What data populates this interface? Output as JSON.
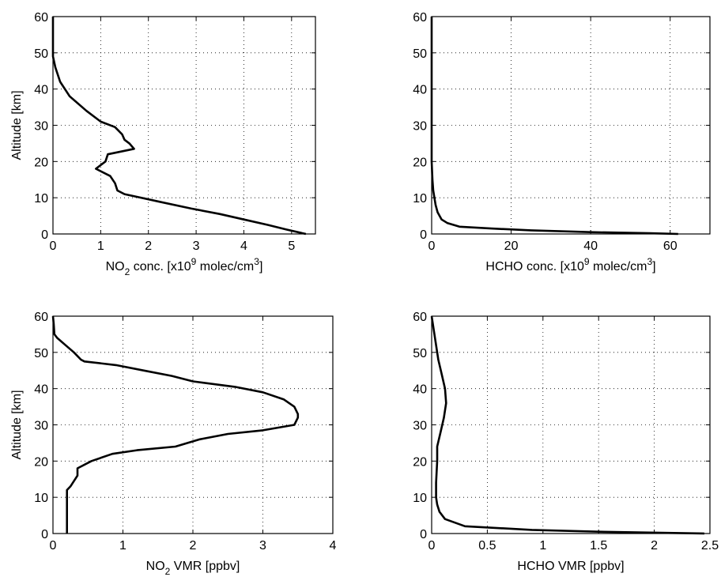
{
  "chart_data": [
    {
      "type": "line",
      "xlabel": {
        "pre": "NO",
        "sub": "2",
        "mid": " conc. [x10",
        "sup": "9",
        "post": " molec/cm",
        "sup2": "3",
        "end": "]"
      },
      "ylabel": "Altitude [km]",
      "xlim": [
        0,
        5.5
      ],
      "ylim": [
        0,
        60
      ],
      "xticks": [
        0,
        1,
        2,
        3,
        4,
        5
      ],
      "yticks": [
        0,
        10,
        20,
        30,
        40,
        50,
        60
      ],
      "grid": true,
      "series": [
        {
          "points": [
            [
              0,
              60
            ],
            [
              0,
              49
            ],
            [
              0.05,
              46
            ],
            [
              0.15,
              42
            ],
            [
              0.35,
              38
            ],
            [
              0.7,
              34
            ],
            [
              1.0,
              31
            ],
            [
              1.3,
              29.5
            ],
            [
              1.45,
              27.5
            ],
            [
              1.5,
              26
            ],
            [
              1.6,
              25
            ],
            [
              1.7,
              23.5
            ],
            [
              1.15,
              22
            ],
            [
              1.1,
              20
            ],
            [
              0.9,
              18
            ],
            [
              1.2,
              16
            ],
            [
              1.3,
              14
            ],
            [
              1.35,
              12
            ],
            [
              1.5,
              11
            ],
            [
              2.2,
              9
            ],
            [
              2.9,
              7
            ],
            [
              3.5,
              5.5
            ],
            [
              4.0,
              4
            ],
            [
              4.5,
              2.5
            ],
            [
              4.9,
              1.2
            ],
            [
              5.3,
              0
            ]
          ]
        }
      ]
    },
    {
      "type": "line",
      "xlabel": {
        "pre": "HCHO conc. [x10",
        "sup": "9",
        "post": " molec/cm",
        "sup2": "3",
        "end": "]"
      },
      "ylabel": "",
      "xlim": [
        0,
        70
      ],
      "ylim": [
        0,
        60
      ],
      "xticks": [
        0,
        20,
        40,
        60
      ],
      "yticks": [
        0,
        10,
        20,
        30,
        40,
        50,
        60
      ],
      "grid": true,
      "series": [
        {
          "points": [
            [
              0,
              60
            ],
            [
              0,
              20
            ],
            [
              0.2,
              15
            ],
            [
              0.4,
              12
            ],
            [
              0.7,
              10
            ],
            [
              1.0,
              8
            ],
            [
              1.5,
              6
            ],
            [
              2.5,
              4
            ],
            [
              4,
              3
            ],
            [
              7,
              2
            ],
            [
              15,
              1.5
            ],
            [
              25,
              1
            ],
            [
              40,
              0.5
            ],
            [
              55,
              0.2
            ],
            [
              62,
              0
            ]
          ]
        }
      ]
    },
    {
      "type": "line",
      "xlabel": {
        "pre": "NO",
        "sub": "2",
        "mid": " VMR [ppbv]"
      },
      "ylabel": "Altitude [km]",
      "xlim": [
        0,
        4
      ],
      "ylim": [
        0,
        60
      ],
      "xticks": [
        0,
        1,
        2,
        3,
        4
      ],
      "yticks": [
        0,
        10,
        20,
        30,
        40,
        50,
        60
      ],
      "grid": true,
      "series": [
        {
          "points": [
            [
              0.2,
              0
            ],
            [
              0.2,
              12
            ],
            [
              0.25,
              13
            ],
            [
              0.35,
              16
            ],
            [
              0.35,
              18
            ],
            [
              0.55,
              20
            ],
            [
              0.85,
              22
            ],
            [
              1.2,
              23
            ],
            [
              1.75,
              24
            ],
            [
              2.1,
              26
            ],
            [
              2.5,
              27.5
            ],
            [
              3.0,
              28.5
            ],
            [
              3.45,
              30
            ],
            [
              3.5,
              32
            ],
            [
              3.5,
              33
            ],
            [
              3.45,
              35
            ],
            [
              3.3,
              37
            ],
            [
              3.0,
              39
            ],
            [
              2.6,
              40.5
            ],
            [
              2.0,
              42
            ],
            [
              1.7,
              43.5
            ],
            [
              1.3,
              45
            ],
            [
              0.9,
              46.5
            ],
            [
              0.45,
              47.5
            ],
            [
              0.4,
              48
            ],
            [
              0.3,
              50
            ],
            [
              0.18,
              52
            ],
            [
              0.06,
              54
            ],
            [
              0.02,
              55
            ],
            [
              0.01,
              58
            ],
            [
              0,
              60
            ]
          ]
        }
      ]
    },
    {
      "type": "line",
      "xlabel": {
        "pre": "HCHO VMR [ppbv]"
      },
      "ylabel": "",
      "xlim": [
        0,
        2.5
      ],
      "ylim": [
        0,
        60
      ],
      "xticks": [
        0,
        0.5,
        1,
        1.5,
        2,
        2.5
      ],
      "yticks": [
        0,
        10,
        20,
        30,
        40,
        50,
        60
      ],
      "grid": true,
      "series": [
        {
          "points": [
            [
              2.45,
              0
            ],
            [
              1.5,
              0.5
            ],
            [
              0.9,
              1
            ],
            [
              0.3,
              2
            ],
            [
              0.12,
              4
            ],
            [
              0.07,
              6
            ],
            [
              0.05,
              8
            ],
            [
              0.04,
              10
            ],
            [
              0.04,
              14
            ],
            [
              0.05,
              20
            ],
            [
              0.05,
              24
            ],
            [
              0.08,
              28
            ],
            [
              0.11,
              32
            ],
            [
              0.13,
              36
            ],
            [
              0.12,
              40
            ],
            [
              0.09,
              44
            ],
            [
              0.06,
              48
            ],
            [
              0.04,
              52
            ],
            [
              0.02,
              56
            ],
            [
              0,
              60
            ]
          ]
        }
      ]
    }
  ]
}
